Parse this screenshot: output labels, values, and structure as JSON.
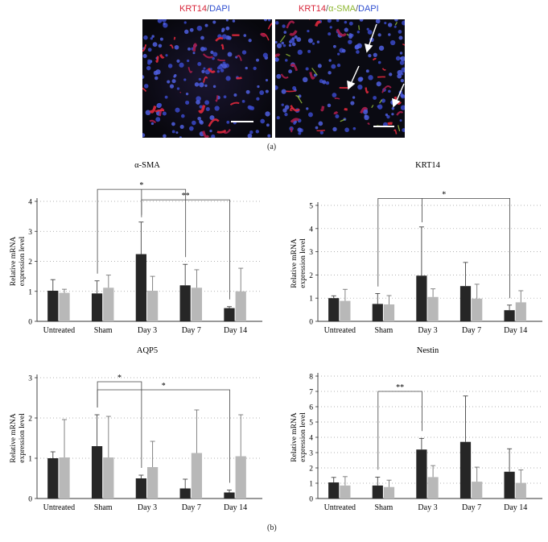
{
  "panel_a": {
    "label": "(a)",
    "left_title": [
      {
        "text": "KRT14",
        "color": "#d8263a"
      },
      {
        "text": "/",
        "color": "#555555"
      },
      {
        "text": "DAPI",
        "color": "#2f4fd0"
      }
    ],
    "right_title": [
      {
        "text": "KRT14",
        "color": "#d8263a"
      },
      {
        "text": "/",
        "color": "#555555"
      },
      {
        "text": "α-SMA",
        "color": "#8fb832"
      },
      {
        "text": "/",
        "color": "#555555"
      },
      {
        "text": "DAPI",
        "color": "#2f4fd0"
      }
    ]
  },
  "panel_b": {
    "label": "(b)"
  },
  "colors": {
    "series_a": "#262626",
    "series_b": "#b8b8b8",
    "grid": "#9a9a9a"
  },
  "chart_data": [
    {
      "type": "bar",
      "title": "α-SMA",
      "ylabel": "Relative mRNA expression level",
      "categories": [
        "Untreated",
        "Sham",
        "Day 3",
        "Day 7",
        "Day 14"
      ],
      "ylim": [
        0,
        4
      ],
      "yticks": [
        "0",
        "1",
        "2",
        "3",
        "4"
      ],
      "series": [
        {
          "values": [
            1.02,
            0.93,
            2.24,
            1.2,
            0.44
          ],
          "errors": [
            0.37,
            0.42,
            1.07,
            0.7,
            0.05
          ]
        },
        {
          "values": [
            0.95,
            1.12,
            1.02,
            1.12,
            1.0
          ],
          "errors": [
            0.12,
            0.42,
            0.48,
            0.6,
            0.77
          ]
        }
      ],
      "annotations": [
        {
          "from": 1,
          "to": 3,
          "level": 4.4,
          "label": "*",
          "mid": 2
        },
        {
          "from": 2,
          "to": 4,
          "level": 4.05,
          "label": "**"
        }
      ]
    },
    {
      "type": "bar",
      "title": "KRT14",
      "ylabel": "Relative mRNA expression level",
      "categories": [
        "Untreated",
        "Sham",
        "Day 3",
        "Day 7",
        "Day 14"
      ],
      "ylim": [
        0,
        5
      ],
      "yticks": [
        "0",
        "1",
        "2",
        "3",
        "4",
        "5"
      ],
      "series": [
        {
          "values": [
            1.0,
            0.75,
            1.97,
            1.52,
            0.48
          ],
          "errors": [
            0.1,
            0.45,
            2.1,
            1.02,
            0.22
          ]
        },
        {
          "values": [
            0.88,
            0.73,
            1.05,
            0.98,
            0.82
          ],
          "errors": [
            0.5,
            0.38,
            0.35,
            0.62,
            0.5
          ]
        }
      ],
      "annotations": [
        {
          "from": 1,
          "to": 4,
          "level": 5.3,
          "label": "*",
          "mid": 2
        }
      ]
    },
    {
      "type": "bar",
      "title": "AQP5",
      "ylabel": "Relative mRNA expression level",
      "categories": [
        "Untreated",
        "Sham",
        "Day 3",
        "Day 7",
        "Day 14"
      ],
      "ylim": [
        0,
        3
      ],
      "yticks": [
        "0",
        "1",
        "2",
        "3"
      ],
      "series": [
        {
          "values": [
            1.0,
            1.3,
            0.5,
            0.25,
            0.15
          ],
          "errors": [
            0.16,
            0.78,
            0.08,
            0.23,
            0.06
          ]
        },
        {
          "values": [
            1.02,
            1.02,
            0.78,
            1.13,
            1.05
          ],
          "errors": [
            0.94,
            1.02,
            0.64,
            1.07,
            1.03
          ]
        }
      ],
      "annotations": [
        {
          "from": 1,
          "to": 2,
          "level": 2.9,
          "label": "*"
        },
        {
          "from": 1,
          "to": 4,
          "level": 2.7,
          "label": "*"
        }
      ]
    },
    {
      "type": "bar",
      "title": "Nestin",
      "ylabel": "Relative mRNA expression level",
      "categories": [
        "Untreated",
        "Sham",
        "Day 3",
        "Day 7",
        "Day 14"
      ],
      "ylim": [
        0,
        8
      ],
      "yticks": [
        "0",
        "1",
        "2",
        "3",
        "4",
        "5",
        "6",
        "7",
        "8"
      ],
      "series": [
        {
          "values": [
            1.05,
            0.85,
            3.2,
            3.7,
            1.75
          ],
          "errors": [
            0.33,
            0.55,
            0.73,
            3.0,
            1.5
          ]
        },
        {
          "values": [
            0.85,
            0.75,
            1.4,
            1.1,
            1.02
          ],
          "errors": [
            0.58,
            0.45,
            0.75,
            0.95,
            0.85
          ]
        }
      ],
      "annotations": [
        {
          "from": 1,
          "to": 2,
          "level": 7.0,
          "label": "**"
        }
      ]
    }
  ]
}
